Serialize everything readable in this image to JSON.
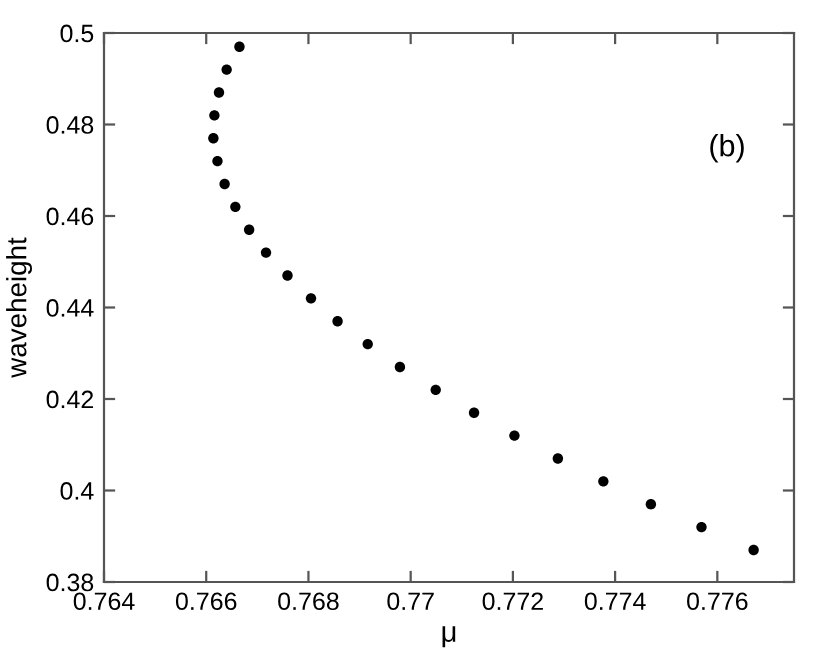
{
  "chart_data": {
    "type": "scatter",
    "xlabel": "μ",
    "ylabel": "waveheight",
    "annotations": [
      "(b)"
    ],
    "marker": "circle",
    "grid": false,
    "series": [
      {
        "color": "#000000",
        "x": [
          0.76665,
          0.7664,
          0.76625,
          0.76616,
          0.76614,
          0.76622,
          0.76636,
          0.76657,
          0.76684,
          0.76717,
          0.76759,
          0.76805,
          0.76857,
          0.76916,
          0.76979,
          0.77049,
          0.77124,
          0.77203,
          0.77288,
          0.77377,
          0.7747,
          0.77569,
          0.77671
        ],
        "values": [
          0.497,
          0.492,
          0.487,
          0.482,
          0.477,
          0.472,
          0.467,
          0.462,
          0.457,
          0.452,
          0.447,
          0.442,
          0.437,
          0.432,
          0.427,
          0.422,
          0.417,
          0.412,
          0.407,
          0.402,
          0.397,
          0.392,
          0.387
        ]
      }
    ],
    "xlim": [
      0.764,
      0.7775
    ],
    "xticks": [
      0.764,
      0.766,
      0.768,
      0.77,
      0.772,
      0.774,
      0.776
    ],
    "ylim": [
      0.38,
      0.5
    ],
    "yticks": [
      0.38,
      0.4,
      0.42,
      0.44,
      0.46,
      0.48,
      0.5
    ]
  }
}
